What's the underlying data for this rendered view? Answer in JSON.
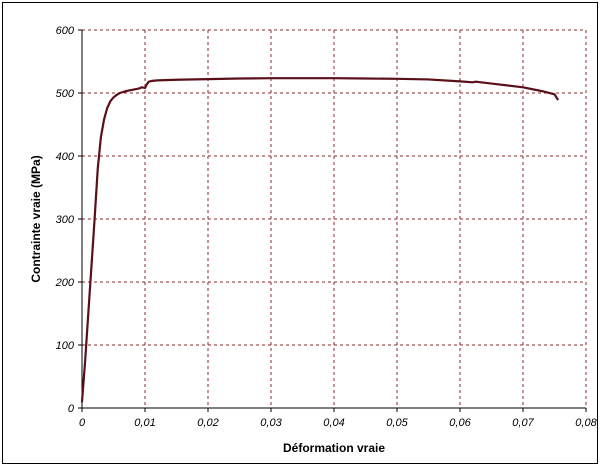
{
  "chart_data": {
    "type": "line",
    "title": "",
    "xlabel": "Déformation vraie",
    "ylabel": "Contrainte vraie (MPa)",
    "xlim": [
      0,
      0.08
    ],
    "ylim": [
      0,
      600
    ],
    "x_ticks": [
      0,
      0.01,
      0.02,
      0.03,
      0.04,
      0.05,
      0.06,
      0.07,
      0.08
    ],
    "x_tick_labels": [
      "0",
      "0,01",
      "0,02",
      "0,03",
      "0,04",
      "0,05",
      "0,06",
      "0,07",
      "0,08"
    ],
    "y_ticks": [
      0,
      100,
      200,
      300,
      400,
      500,
      600
    ],
    "y_tick_labels": [
      "0",
      "100",
      "200",
      "300",
      "400",
      "500",
      "600"
    ],
    "grid": true,
    "legend": "none",
    "colors": {
      "series": "#5a0f1a",
      "grid": "#8b2a2a",
      "axis": "#000000"
    },
    "series": [
      {
        "x": [
          0,
          0.0005,
          0.001,
          0.0015,
          0.002,
          0.0025,
          0.003,
          0.0035,
          0.004,
          0.0045,
          0.005,
          0.0055,
          0.006,
          0.007,
          0.008,
          0.009,
          0.0095,
          0.01,
          0.0103,
          0.0106,
          0.011,
          0.012,
          0.015,
          0.02,
          0.025,
          0.03,
          0.035,
          0.04,
          0.045,
          0.05,
          0.055,
          0.06,
          0.062,
          0.0625,
          0.065,
          0.07,
          0.073,
          0.075,
          0.0755
        ],
        "y": [
          10,
          75,
          150,
          225,
          300,
          380,
          430,
          458,
          476,
          487,
          493,
          497,
          500,
          503,
          505,
          507,
          509,
          508,
          514,
          518,
          519,
          520,
          521,
          522,
          523,
          523.5,
          523.5,
          523.5,
          523,
          522.5,
          521.5,
          518.5,
          517,
          518,
          515,
          509,
          503,
          498,
          490
        ]
      }
    ]
  }
}
